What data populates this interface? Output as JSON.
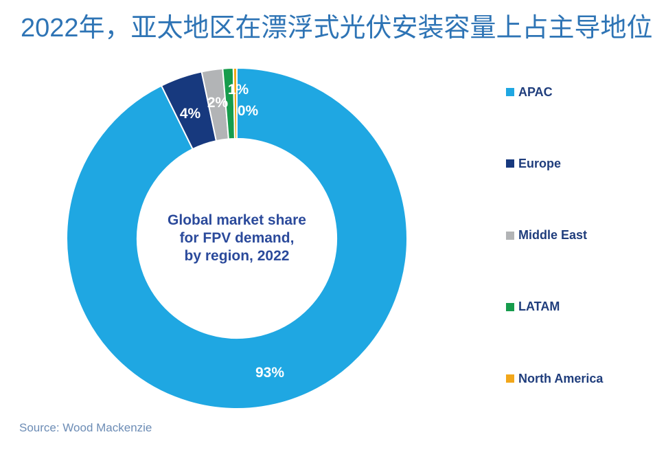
{
  "title": "2022年，亚太地区在漂浮式光伏安装容量上占主导地位",
  "source_note": "Source: Wood Mackenzie",
  "center_label": {
    "lines": [
      "Global market share",
      "for FPV demand,",
      "by region, 2022"
    ]
  },
  "colors": {
    "title_text": "#2E74B5",
    "legend_text": "#1F3D7C",
    "center_text": "#2B4A9B",
    "source_text": "#6C8CB5",
    "slice_label_text": "#FFFFFF",
    "background": "#FFFFFF",
    "slice_border": "#FFFFFF"
  },
  "chart_data": {
    "type": "pie",
    "subtype": "donut",
    "title": "Global market share for FPV demand, by region, 2022",
    "categories": [
      "APAC",
      "Europe",
      "Middle East",
      "LATAM",
      "North America"
    ],
    "values": [
      93,
      4,
      2,
      1,
      0
    ],
    "labels": [
      "93%",
      "4%",
      "2%",
      "1%",
      "0%"
    ],
    "colors": [
      "#1FA7E2",
      "#17397E",
      "#B2B4B6",
      "#169C4C",
      "#F2A71B"
    ],
    "legend_position": "right",
    "start_angle_deg": 0,
    "direction": "clockwise",
    "inner_radius_ratio": 0.585,
    "min_slice_deg": 1.2,
    "label_positions": [
      [
        393,
        543
      ],
      [
        277,
        166
      ],
      [
        317,
        150
      ],
      [
        347,
        131
      ],
      [
        361,
        162
      ]
    ]
  }
}
